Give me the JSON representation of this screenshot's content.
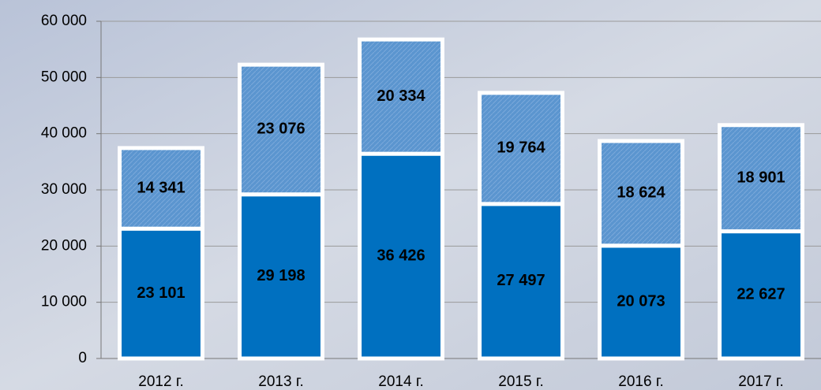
{
  "chart_data": {
    "type": "stacked_bar",
    "categories": [
      "2012 г.",
      "2013 г.",
      "2014 г.",
      "2015 г.",
      "2016 г.",
      "2017 г."
    ],
    "series": [
      {
        "color": "#0070c0",
        "values": [
          23101,
          29198,
          36426,
          27497,
          20073,
          22627
        ],
        "value_labels": [
          "23 101",
          "29 198",
          "36 426",
          "27 497",
          "20 073",
          "22 627"
        ]
      },
      {
        "color": "#5b95cf",
        "values": [
          14341,
          23076,
          20334,
          19764,
          18624,
          18901
        ],
        "value_labels": [
          "14 341",
          "23 076",
          "20 334",
          "19 764",
          "18 624",
          "18 901"
        ]
      }
    ],
    "ylim": [
      0,
      60000
    ],
    "yticks": [
      0,
      {
        "value": 10000,
        "label": "10 000"
      },
      {
        "value": 20000,
        "label": "20 000"
      },
      {
        "value": 30000,
        "label": "30 000"
      },
      {
        "value": 40000,
        "label": "40 000"
      },
      {
        "value": 50000,
        "label": "50 000"
      },
      {
        "value": 60000,
        "label": "60 000"
      }
    ],
    "grid": true
  }
}
